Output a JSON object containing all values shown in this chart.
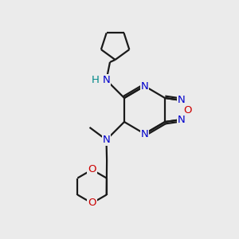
{
  "bg_color": "#ebebeb",
  "bond_color": "#1a1a1a",
  "N_color": "#0000cc",
  "O_color": "#cc0000",
  "NH_color": "#008888",
  "lw": 1.6,
  "fs": 9.5,
  "xlim": [
    0,
    10
  ],
  "ylim": [
    0,
    10
  ]
}
